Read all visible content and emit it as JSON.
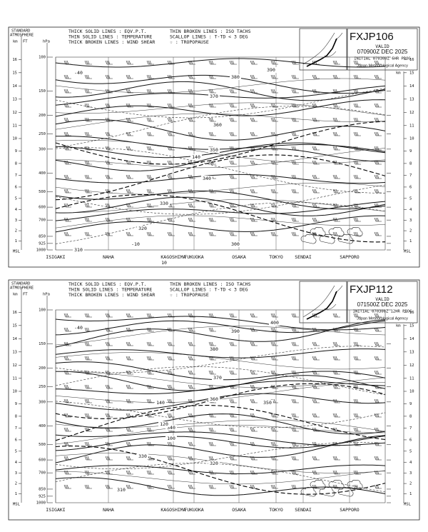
{
  "axis": {
    "std_atm_1": "STANDARD",
    "std_atm_2": "ATMOSPHERE",
    "km": "km",
    "ft": "FT",
    "hpa": "hPa",
    "msl": "MSL"
  },
  "legend": [
    "THICK SOLID LINES : EQV.P.T.",
    "THIN SOLID LINES : TEMPERATURE",
    "THICK BROKEN LINES : WIND SHEAR",
    "THIN BROKEN LINES : ISO TACHS",
    "SCALLOP LINES : T-TD < 3 DEG",
    "☆ : TROPOPAUSE"
  ],
  "stations": [
    "ISIGAKI",
    "NAHA",
    "KAGOSHIMA",
    "FUKUOKA",
    "OSAKA",
    "TOKYO",
    "SENDAI",
    "SAPPORO"
  ],
  "pressure_levels": [
    100,
    150,
    200,
    250,
    300,
    400,
    500,
    600,
    700,
    850,
    925,
    1000
  ],
  "heights_km": [
    1,
    2,
    3,
    4,
    5,
    6,
    7,
    8,
    9,
    10,
    11,
    12,
    13,
    14,
    15,
    16
  ],
  "panels": [
    {
      "product": "FXJP106",
      "valid": "VALID",
      "time": "070900Z DEC 2025",
      "initial": "INITIAL 070300Z 6HR PROG",
      "agency": "Japan Meteorological Agency",
      "contour_labels": [
        "390",
        "380",
        "370",
        "360",
        "350",
        "340",
        "330",
        "320",
        "310",
        "300",
        "140",
        "-40",
        "-10",
        "10"
      ]
    },
    {
      "product": "FXJP112",
      "valid": "VALID",
      "time": "071500Z DEC 2025",
      "initial": "INITIAL 070300Z 12HR PROG",
      "agency": "Japan Meteorological Agency",
      "contour_labels": [
        "400",
        "390",
        "380",
        "370",
        "360",
        "350",
        "340",
        "330",
        "320",
        "310",
        "140",
        "120",
        "100",
        "-40"
      ]
    }
  ]
}
